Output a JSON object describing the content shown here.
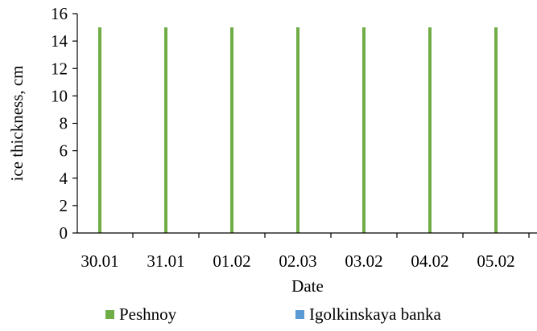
{
  "chart_data": {
    "type": "bar",
    "categories": [
      "30.01",
      "31.01",
      "01.02",
      "02.03",
      "03.02",
      "04.02",
      "05.02"
    ],
    "series": [
      {
        "name": "Peshnoy",
        "color": "#70ad47",
        "values": [
          15,
          15,
          15,
          15,
          15,
          15,
          15
        ]
      },
      {
        "name": "Igolkinskaya banka",
        "color": "#5b9bd5",
        "values": [
          0,
          0,
          0,
          0,
          0,
          0,
          0
        ]
      }
    ],
    "yticks": [
      "0",
      "2",
      "4",
      "6",
      "8",
      "10",
      "12",
      "14",
      "16"
    ],
    "ylim": [
      0,
      16
    ],
    "xlabel": "Date",
    "ylabel": "ice thickness, cm",
    "grid": false,
    "legend_position": "bottom"
  }
}
